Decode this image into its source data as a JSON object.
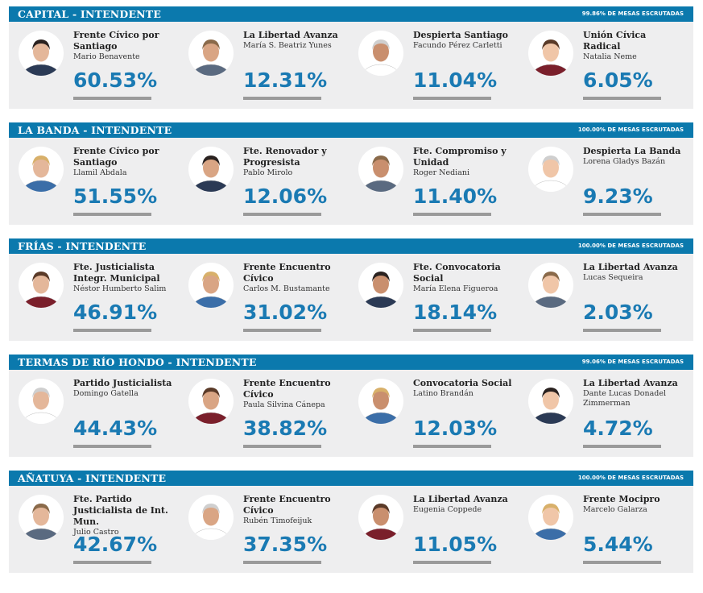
{
  "sections": [
    {
      "title": "CAPITAL - INTENDENTE",
      "scrutiny": "99.86% DE MESAS ESCRUTADAS",
      "candidates": [
        {
          "party": "Frente Cívico por Santiago",
          "name": "Mario Benavente",
          "percent": "60.53%"
        },
        {
          "party": "La Libertad Avanza",
          "name": "María S. Beatriz Yunes",
          "percent": "12.31%"
        },
        {
          "party": "Despierta Santiago",
          "name": "Facundo Pérez Carletti",
          "percent": "11.04%"
        },
        {
          "party": "Unión Cívica Radical",
          "name": "Natalia Neme",
          "percent": "6.05%"
        }
      ]
    },
    {
      "title": "LA BANDA - INTENDENTE",
      "scrutiny": "100.00% DE MESAS ESCRUTADAS",
      "candidates": [
        {
          "party": "Frente Cívico por Santiago",
          "name": "Llamil Abdala",
          "percent": "51.55%"
        },
        {
          "party": "Fte. Renovador y Progresista",
          "name": "Pablo Mirolo",
          "percent": "12.06%"
        },
        {
          "party": "Fte. Compromiso y Unidad",
          "name": "Roger Nediani",
          "percent": "11.40%"
        },
        {
          "party": "Despierta La Banda",
          "name": "Lorena Gladys Bazán",
          "percent": "9.23%"
        }
      ]
    },
    {
      "title": "FRÍAS - INTENDENTE",
      "scrutiny": "100.00% DE MESAS ESCRUTADAS",
      "candidates": [
        {
          "party": "Fte. Justicialista Integr. Municipal",
          "name": "Néstor Humberto Salim",
          "percent": "46.91%"
        },
        {
          "party": "Frente Encuentro Cívico",
          "name": "Carlos M. Bustamante",
          "percent": "31.02%"
        },
        {
          "party": "Fte. Convocatoria Social",
          "name": "María Elena Figueroa",
          "percent": "18.14%"
        },
        {
          "party": "La Libertad Avanza",
          "name": "Lucas Sequeira",
          "percent": "2.03%"
        }
      ]
    },
    {
      "title": "TERMAS DE RÍO HONDO - INTENDENTE",
      "scrutiny": "99.06% DE MESAS ESCRUTADAS",
      "candidates": [
        {
          "party": "Partido Justicialista",
          "name": "Domingo Gatella",
          "percent": "44.43%"
        },
        {
          "party": "Frente Encuentro Cívico",
          "name": "Paula Silvina Cánepa",
          "percent": "38.82%"
        },
        {
          "party": "Convocatoria Social",
          "name": "Latino Brandán",
          "percent": "12.03%"
        },
        {
          "party": "La Libertad Avanza",
          "name": "Dante Lucas Donadel Zimmerman",
          "percent": "4.72%"
        }
      ]
    },
    {
      "title": "AÑATUYA - INTENDENTE",
      "scrutiny": "100.00% DE MESAS ESCRUTADAS",
      "candidates": [
        {
          "party": "Fte. Partido Justicialista de Int. Mun.",
          "name": "Julio Castro",
          "percent": "42.67%"
        },
        {
          "party": "Frente Encuentro Cívico",
          "name": "Rubén Timofeijuk",
          "percent": "37.35%"
        },
        {
          "party": "La Libertad Avanza",
          "name": "Eugenia Coppede",
          "percent": "11.05%"
        },
        {
          "party": "Frente Mocipro",
          "name": "Marcelo Galarza",
          "percent": "5.44%"
        }
      ]
    }
  ]
}
